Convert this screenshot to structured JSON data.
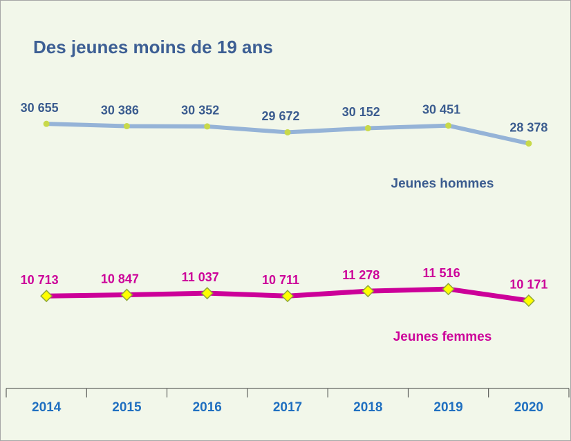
{
  "chart_data": {
    "type": "line",
    "title": "Des jeunes moins de 19 ans",
    "categories": [
      "2014",
      "2015",
      "2016",
      "2017",
      "2018",
      "2019",
      "2020"
    ],
    "series": [
      {
        "name": "Jeunes hommes",
        "color": "#95b3d7",
        "marker_color": "#c8d94a",
        "label_color": "#3b5c8f",
        "values": [
          30655,
          30386,
          30352,
          29672,
          30152,
          30451,
          28378
        ],
        "value_labels": [
          "30 655",
          "30 386",
          "30 352",
          "29 672",
          "30 152",
          "30 451",
          "28 378"
        ]
      },
      {
        "name": "Jeunes femmes",
        "color": "#cc0099",
        "marker_color": "#ffff00",
        "label_color": "#cc0099",
        "values": [
          10713,
          10847,
          11037,
          10711,
          11278,
          11516,
          10171
        ],
        "value_labels": [
          "10 713",
          "10 847",
          "11 037",
          "10 711",
          "11 278",
          "11 516",
          "10 171"
        ]
      }
    ],
    "ylim": [
      0,
      45000
    ]
  }
}
